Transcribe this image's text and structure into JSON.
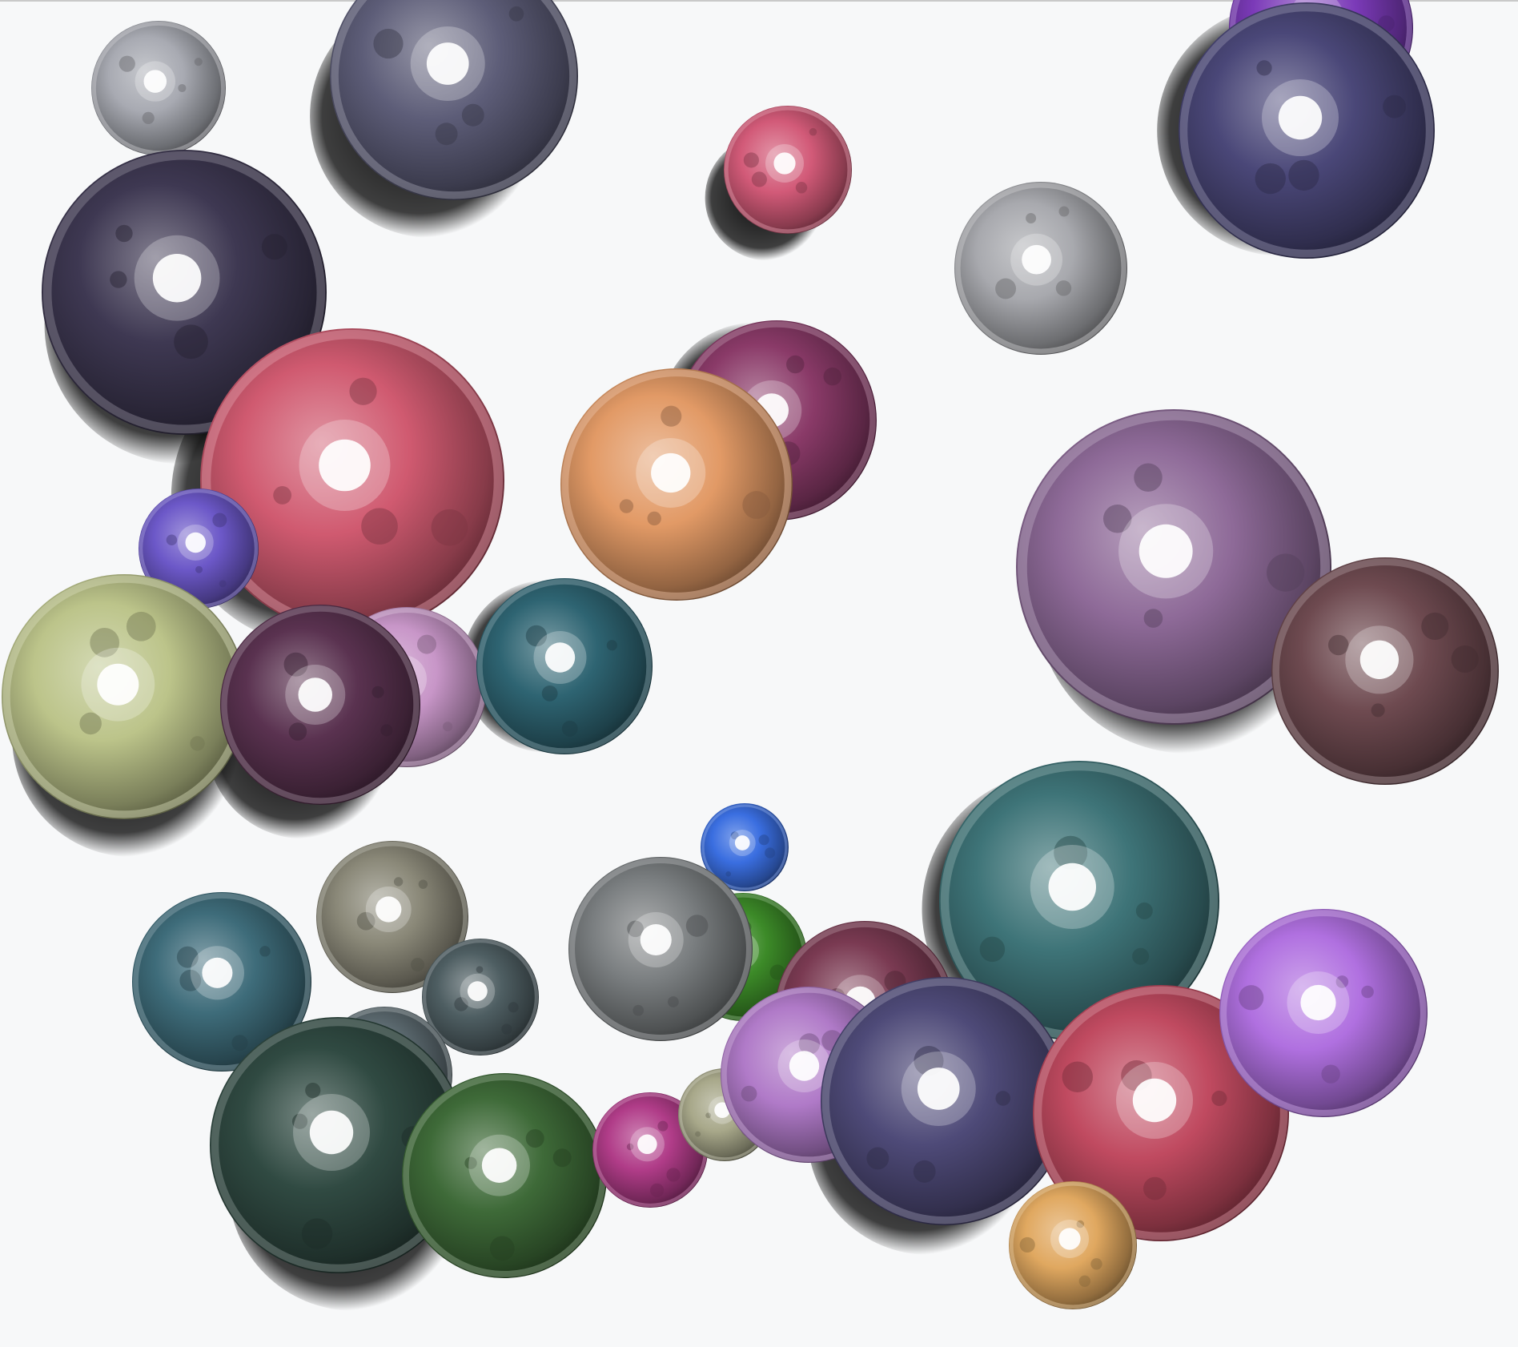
{
  "scene": {
    "background_color": "#f7f8f9",
    "specular_color": "#ffffff",
    "shadow_color": "#000000",
    "spheres": [
      {
        "name": "sphere-silver-top-left",
        "color": "#a8aab2"
      },
      {
        "name": "sphere-grey-violet-top",
        "color": "#5d5d78"
      },
      {
        "name": "sphere-pink-small-top",
        "color": "#d25a78"
      },
      {
        "name": "sphere-silver-top-right",
        "color": "#a8a9ae"
      },
      {
        "name": "sphere-purple-top-corner",
        "color": "#7b3ab8"
      },
      {
        "name": "sphere-indigo-top-right",
        "color": "#4a4778"
      },
      {
        "name": "sphere-dark-violet-left",
        "color": "#3e3852"
      },
      {
        "name": "sphere-magenta-center",
        "color": "#8a3a68"
      },
      {
        "name": "sphere-rose-large",
        "color": "#d05a70"
      },
      {
        "name": "sphere-orange-center",
        "color": "#e29a66"
      },
      {
        "name": "sphere-mauve-large-right",
        "color": "#8e6a98"
      },
      {
        "name": "sphere-brown-right",
        "color": "#6e4a50"
      },
      {
        "name": "sphere-violet-small-left",
        "color": "#6c58c8"
      },
      {
        "name": "sphere-lilac-left",
        "color": "#c896c8"
      },
      {
        "name": "sphere-olive-yellow",
        "color": "#bcc48a"
      },
      {
        "name": "sphere-plum-left",
        "color": "#5a3250"
      },
      {
        "name": "sphere-teal-dark-center",
        "color": "#2e6472"
      },
      {
        "name": "sphere-steel-blue-left",
        "color": "#3e6c7a"
      },
      {
        "name": "sphere-khaki-grey",
        "color": "#8a8878"
      },
      {
        "name": "sphere-slate-small",
        "color": "#4e5e62"
      },
      {
        "name": "sphere-silver-small-lower",
        "color": "#5c6a70"
      },
      {
        "name": "sphere-dark-teal-green",
        "color": "#304a42"
      },
      {
        "name": "sphere-forest-green",
        "color": "#3e6a38"
      },
      {
        "name": "sphere-magenta-small",
        "color": "#b03c88"
      },
      {
        "name": "sphere-khaki-small",
        "color": "#a8a88a"
      },
      {
        "name": "sphere-bright-green",
        "color": "#3c8a28"
      },
      {
        "name": "sphere-blue-tiny",
        "color": "#3a6ee0"
      },
      {
        "name": "sphere-grey-center",
        "color": "#7a7e80"
      },
      {
        "name": "sphere-maroon-lower",
        "color": "#7a3a52"
      },
      {
        "name": "sphere-lavender-small",
        "color": "#b07ac8"
      },
      {
        "name": "sphere-teal-large",
        "color": "#3e7478"
      },
      {
        "name": "sphere-indigo-lower",
        "color": "#4e4a78"
      },
      {
        "name": "sphere-crimson-lower",
        "color": "#c04a60"
      },
      {
        "name": "sphere-violet-bright-right",
        "color": "#b070e0"
      },
      {
        "name": "sphere-gold-small",
        "color": "#e0a860"
      }
    ]
  }
}
